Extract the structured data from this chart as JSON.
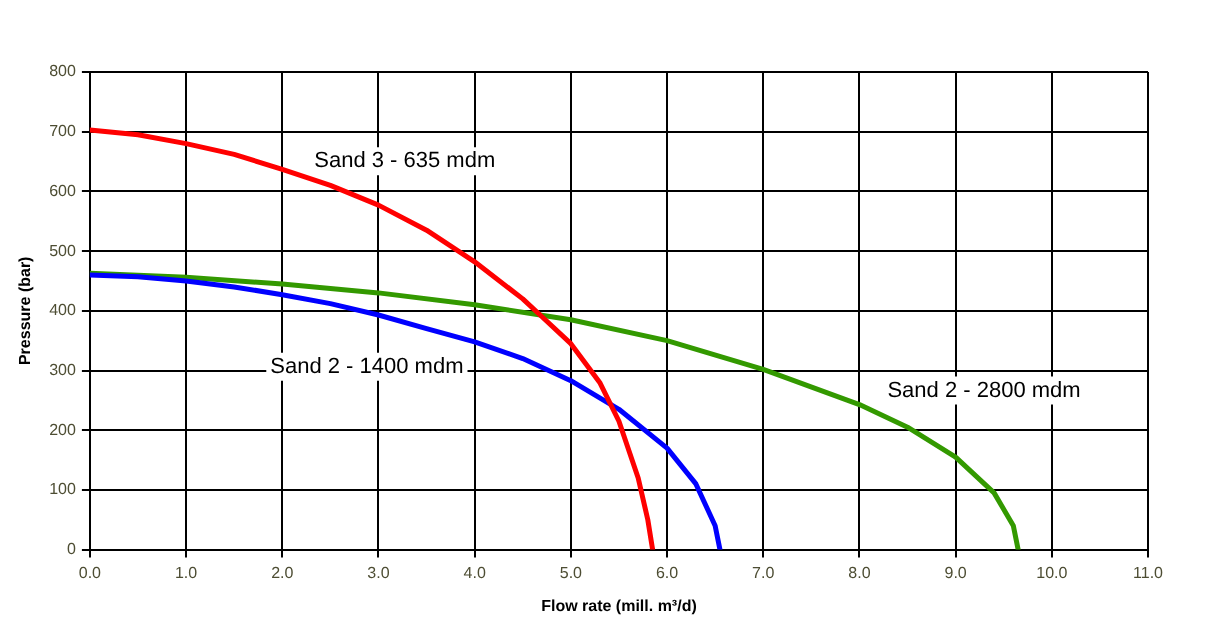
{
  "chart_data": {
    "type": "line",
    "xlabel": "Flow rate (mill. m³/d)",
    "ylabel": "Pressure (bar)",
    "series": [
      {
        "name": "Sand 3 - 635 mdm",
        "color": "#ff0000",
        "x": [
          0,
          0.5,
          1,
          1.5,
          2,
          2.5,
          3,
          3.5,
          4,
          4.5,
          4.7,
          5,
          5.3,
          5.5,
          5.7,
          5.8,
          5.85
        ],
        "values": [
          703,
          695,
          680,
          662,
          637,
          610,
          577,
          535,
          482,
          420,
          390,
          345,
          280,
          215,
          120,
          50,
          0
        ]
      },
      {
        "name": "Sand 2 - 1400 mdm",
        "color": "#0000ff",
        "x": [
          0,
          0.5,
          1,
          1.5,
          2,
          2.5,
          3,
          3.5,
          4,
          4.5,
          5,
          5.5,
          6,
          6.3,
          6.5,
          6.55
        ],
        "values": [
          460,
          457,
          450,
          440,
          427,
          412,
          393,
          370,
          348,
          320,
          283,
          235,
          170,
          110,
          40,
          0
        ]
      },
      {
        "name": "Sand 2 - 2800 mdm",
        "color": "#339900",
        "x": [
          0,
          1,
          2,
          3,
          4,
          5,
          6,
          7,
          8,
          8.5,
          9,
          9.4,
          9.6,
          9.65
        ],
        "values": [
          463,
          456,
          445,
          430,
          410,
          385,
          350,
          302,
          243,
          205,
          155,
          95,
          40,
          0
        ]
      }
    ],
    "xlim": [
      0,
      11
    ],
    "xticks": [
      {
        "value": 0,
        "label": "0.0"
      },
      {
        "value": 1,
        "label": "1.0"
      },
      {
        "value": 2,
        "label": "2.0"
      },
      {
        "value": 3,
        "label": "3.0"
      },
      {
        "value": 4,
        "label": "4.0"
      },
      {
        "value": 5,
        "label": "5.0"
      },
      {
        "value": 6,
        "label": "6.0"
      },
      {
        "value": 7,
        "label": "7.0"
      },
      {
        "value": 8,
        "label": "8.0"
      },
      {
        "value": 9,
        "label": "9.0"
      },
      {
        "value": 10,
        "label": "10.0"
      },
      {
        "value": 11,
        "label": "11.0"
      }
    ],
    "ylim": [
      0,
      800
    ],
    "yticks": [
      0,
      100,
      200,
      300,
      400,
      500,
      600,
      700,
      800
    ],
    "grid": true,
    "legend": false,
    "marker": "none",
    "line_style": "solid"
  }
}
